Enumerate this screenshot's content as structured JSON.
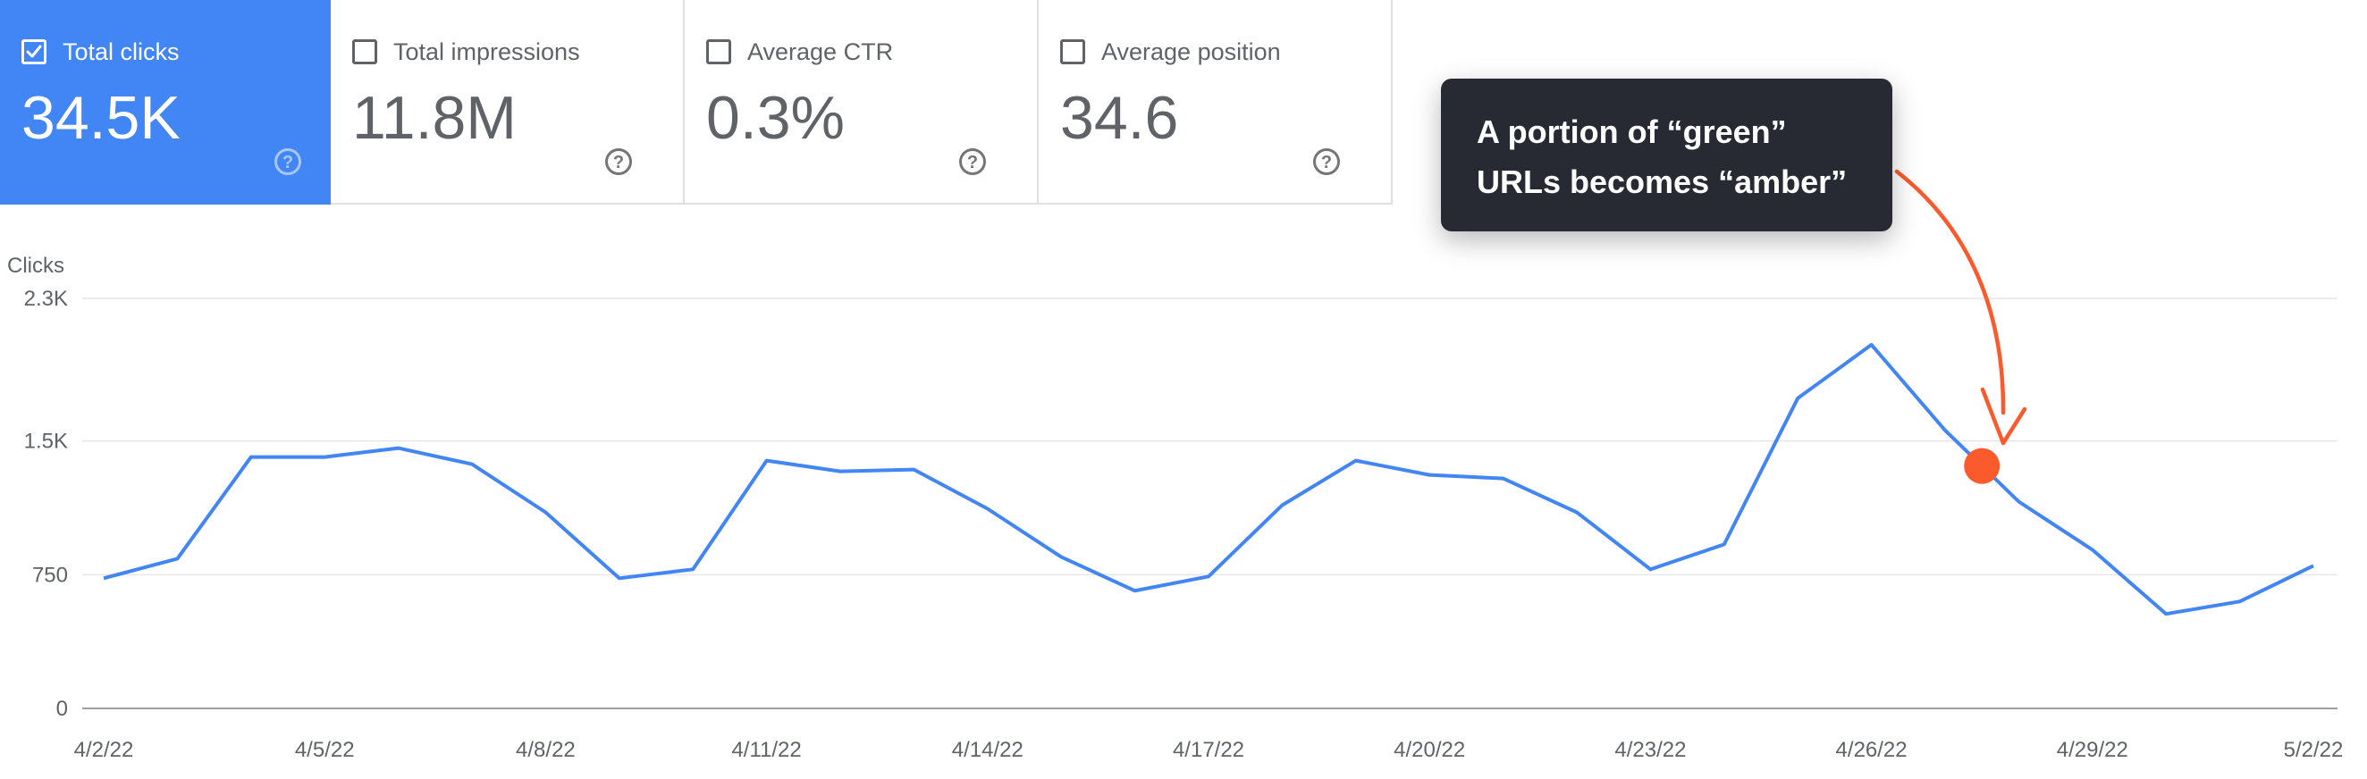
{
  "metrics": [
    {
      "label": "Total clicks",
      "value": "34.5K",
      "checked": true
    },
    {
      "label": "Total impressions",
      "value": "11.8M",
      "checked": false
    },
    {
      "label": "Average CTR",
      "value": "0.3%",
      "checked": false
    },
    {
      "label": "Average position",
      "value": "34.6",
      "checked": false
    }
  ],
  "annotation": {
    "line1": "A portion of “green”",
    "line2": "URLs becomes “amber”",
    "marker_date": "4/28/22"
  },
  "colors": {
    "accent": "#4285f4",
    "line": "#4285f4",
    "annotation": "#fb5a2c",
    "tooltip_bg": "#272a33"
  },
  "chart_data": {
    "type": "line",
    "ylabel": "Clicks",
    "ylim": [
      0,
      2300
    ],
    "yticks": [
      0,
      750,
      1500,
      2300
    ],
    "ytick_labels": [
      "0",
      "750",
      "1.5K",
      "2.3K"
    ],
    "xtick_labels": [
      "4/2/22",
      "4/5/22",
      "4/8/22",
      "4/11/22",
      "4/14/22",
      "4/17/22",
      "4/20/22",
      "4/23/22",
      "4/26/22",
      "4/29/22",
      "5/2/22"
    ],
    "grid": true,
    "x": [
      "4/2/22",
      "4/3/22",
      "4/4/22",
      "4/5/22",
      "4/6/22",
      "4/7/22",
      "4/8/22",
      "4/9/22",
      "4/10/22",
      "4/11/22",
      "4/12/22",
      "4/13/22",
      "4/14/22",
      "4/15/22",
      "4/16/22",
      "4/17/22",
      "4/18/22",
      "4/19/22",
      "4/20/22",
      "4/21/22",
      "4/22/22",
      "4/23/22",
      "4/24/22",
      "4/25/22",
      "4/26/22",
      "4/27/22",
      "4/28/22",
      "4/29/22",
      "4/30/22",
      "5/1/22",
      "5/2/22"
    ],
    "series": [
      {
        "values": [
          730,
          840,
          1410,
          1410,
          1460,
          1370,
          1100,
          730,
          780,
          1390,
          1330,
          1340,
          1120,
          850,
          660,
          740,
          1140,
          1390,
          1310,
          1290,
          1100,
          780,
          920,
          1740,
          2040,
          1560,
          1160,
          890,
          530,
          600,
          800
        ]
      }
    ]
  }
}
